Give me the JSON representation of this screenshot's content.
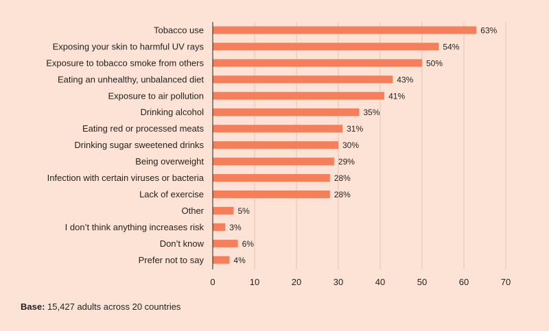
{
  "chart_data": {
    "type": "bar",
    "orientation": "horizontal",
    "categories": [
      "Tobacco use",
      "Exposing your skin to harmful UV rays",
      "Exposure to tobacco smoke from others",
      "Eating an unhealthy, unbalanced diet",
      "Exposure to air pollution",
      "Drinking alcohol",
      "Eating red or processed meats",
      "Drinking sugar sweetened drinks",
      "Being overweight",
      "Infection with certain viruses or bacteria",
      "Lack of exercise",
      "Other",
      "I don’t think anything increases risk",
      "Don’t know",
      "Prefer not to say"
    ],
    "values": [
      63,
      54,
      50,
      43,
      41,
      35,
      31,
      30,
      29,
      28,
      28,
      5,
      3,
      6,
      4
    ],
    "value_labels": [
      "63%",
      "54%",
      "50%",
      "43%",
      "41%",
      "35%",
      "31%",
      "30%",
      "29%",
      "28%",
      "28%",
      "5%",
      "3%",
      "6%",
      "4%"
    ],
    "xlim": [
      0,
      70
    ],
    "xticks": [
      0,
      10,
      20,
      30,
      40,
      50,
      60,
      70
    ],
    "grid": true,
    "bar_color": "#f47f5a",
    "grid_color": "#e8c0ac",
    "axis_color": "#1f1f1f",
    "title": "",
    "xlabel": "",
    "ylabel": ""
  },
  "footnote": {
    "label": "Base:",
    "text": " 15,427 adults across 20 countries"
  }
}
